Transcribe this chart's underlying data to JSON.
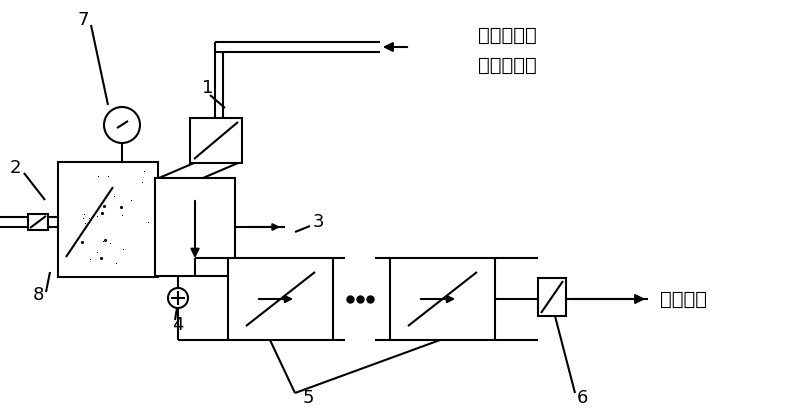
{
  "bg_color": "#ffffff",
  "line_color": "#000000",
  "text_top_line1": "来自减压器",
  "text_top_line2": "的工作气体",
  "text_right": "废气排放",
  "label_fontsize": 13,
  "chinese_fontsize": 14
}
